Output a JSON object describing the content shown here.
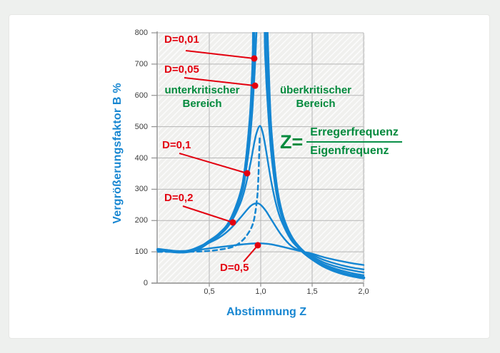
{
  "colors": {
    "blue_curve": "#1486d2",
    "red_annotation": "#e3000f",
    "green_text": "#028a3d",
    "grid": "#b5b5b5",
    "axis": "#8f8f8f",
    "tick_text": "#3c3c3c",
    "plot_background": "#f0f0ee",
    "card_background": "#ffffff",
    "page_background": "#eef0ee"
  },
  "chart_data": {
    "type": "line",
    "title": "",
    "xlabel": "Abstimmung Z",
    "ylabel": "Vergrößerungsfaktor B %",
    "xlim": [
      0,
      2
    ],
    "ylim": [
      0,
      800
    ],
    "grid": true,
    "x_ticks": [
      {
        "value": 0.5,
        "label": "0,5"
      },
      {
        "value": 1.0,
        "label": "1,0"
      },
      {
        "value": 1.5,
        "label": "1,5"
      },
      {
        "value": 2.0,
        "label": "2,0"
      }
    ],
    "y_ticks": [
      {
        "value": 0,
        "label": "0"
      },
      {
        "value": 100,
        "label": "100"
      },
      {
        "value": 200,
        "label": "200"
      },
      {
        "value": 300,
        "label": "300"
      },
      {
        "value": 400,
        "label": "400"
      },
      {
        "value": 500,
        "label": "500"
      },
      {
        "value": 600,
        "label": "600"
      },
      {
        "value": 700,
        "label": "700"
      },
      {
        "value": 800,
        "label": "800"
      }
    ],
    "series": [
      {
        "id": "d001",
        "name": "D=0,01",
        "style": "thick",
        "points": [
          [
            0,
            107
          ],
          [
            0.1,
            103
          ],
          [
            0.2,
            100
          ],
          [
            0.3,
            102
          ],
          [
            0.4,
            112
          ],
          [
            0.5,
            133
          ],
          [
            0.6,
            157
          ],
          [
            0.7,
            196
          ],
          [
            0.8,
            278
          ],
          [
            0.85,
            360
          ],
          [
            0.9,
            524
          ],
          [
            0.92,
            646
          ],
          [
            0.93,
            733
          ],
          [
            0.95,
            1000
          ],
          [
            1.05,
            956
          ],
          [
            1.06,
            797
          ],
          [
            1.08,
            600
          ],
          [
            1.1,
            475
          ],
          [
            1.15,
            311
          ],
          [
            1.2,
            227
          ],
          [
            1.25,
            178
          ],
          [
            1.3,
            145
          ],
          [
            1.35,
            122
          ],
          [
            1.414,
            100
          ],
          [
            1.5,
            78
          ],
          [
            1.6,
            57
          ],
          [
            1.7,
            42
          ],
          [
            1.8,
            31
          ],
          [
            1.9,
            23
          ],
          [
            2,
            17
          ]
        ]
      },
      {
        "id": "d005",
        "name": "D=0,05",
        "style": "thin",
        "points": [
          [
            0,
            106
          ],
          [
            0.15,
            100
          ],
          [
            0.3,
            103
          ],
          [
            0.4,
            113
          ],
          [
            0.5,
            133
          ],
          [
            0.6,
            156
          ],
          [
            0.7,
            195
          ],
          [
            0.8,
            273
          ],
          [
            0.85,
            350
          ],
          [
            0.88,
            413
          ],
          [
            0.9,
            476
          ],
          [
            0.92,
            558
          ],
          [
            0.94,
            668
          ],
          [
            0.96,
            807
          ],
          [
            0.97,
            900
          ],
          [
            1.03,
            900
          ],
          [
            1.04,
            756
          ],
          [
            1.05,
            681
          ],
          [
            1.06,
            614
          ],
          [
            1.1,
            422
          ],
          [
            1.15,
            292
          ],
          [
            1.2,
            219
          ],
          [
            1.3,
            142
          ],
          [
            1.414,
            100
          ],
          [
            1.5,
            81
          ],
          [
            1.6,
            62
          ],
          [
            1.7,
            49
          ],
          [
            1.8,
            39
          ],
          [
            1.9,
            31
          ],
          [
            2,
            25
          ]
        ]
      },
      {
        "id": "d01",
        "name": "D=0,1",
        "style": "thin",
        "points": [
          [
            0,
            105
          ],
          [
            0.15,
            100
          ],
          [
            0.3,
            104
          ],
          [
            0.5,
            132
          ],
          [
            0.6,
            154
          ],
          [
            0.7,
            189
          ],
          [
            0.8,
            254
          ],
          [
            0.85,
            307
          ],
          [
            0.9,
            382
          ],
          [
            0.95,
            468
          ],
          [
            0.99,
            502
          ],
          [
            1.02,
            480
          ],
          [
            1.05,
            428
          ],
          [
            1.1,
            329
          ],
          [
            1.15,
            252
          ],
          [
            1.2,
            200
          ],
          [
            1.3,
            136
          ],
          [
            1.414,
            100
          ],
          [
            1.5,
            85
          ],
          [
            1.6,
            68
          ],
          [
            1.7,
            56
          ],
          [
            1.8,
            47
          ],
          [
            1.9,
            40
          ],
          [
            2,
            34
          ]
        ]
      },
      {
        "id": "d02",
        "name": "D=0,2",
        "style": "thin",
        "points": [
          [
            0,
            105
          ],
          [
            0.2,
            100
          ],
          [
            0.35,
            104
          ],
          [
            0.5,
            129
          ],
          [
            0.6,
            146
          ],
          [
            0.7,
            172
          ],
          [
            0.8,
            208
          ],
          [
            0.9,
            246
          ],
          [
            0.96,
            255
          ],
          [
            1,
            250
          ],
          [
            1.05,
            231
          ],
          [
            1.1,
            205
          ],
          [
            1.2,
            154
          ],
          [
            1.3,
            118
          ],
          [
            1.414,
            100
          ],
          [
            1.5,
            90
          ],
          [
            1.6,
            76
          ],
          [
            1.7,
            65
          ],
          [
            1.8,
            56
          ],
          [
            1.9,
            49
          ],
          [
            2,
            44
          ]
        ]
      },
      {
        "id": "d05",
        "name": "D=0,5",
        "style": "thin",
        "points": [
          [
            0,
            104
          ],
          [
            0.2,
            100
          ],
          [
            0.35,
            104
          ],
          [
            0.5,
            111
          ],
          [
            0.6,
            115
          ],
          [
            0.7,
            119
          ],
          [
            0.8,
            123
          ],
          [
            0.9,
            126
          ],
          [
            1,
            127
          ],
          [
            1.1,
            124
          ],
          [
            1.2,
            117
          ],
          [
            1.3,
            109
          ],
          [
            1.414,
            100
          ],
          [
            1.5,
            94
          ],
          [
            1.6,
            84
          ],
          [
            1.7,
            76
          ],
          [
            1.8,
            69
          ],
          [
            1.9,
            63
          ],
          [
            2,
            58
          ]
        ]
      },
      {
        "id": "locus",
        "name": "",
        "style": "dashed",
        "points": [
          [
            0,
            100
          ],
          [
            0.25,
            100
          ],
          [
            0.4,
            101
          ],
          [
            0.5,
            103
          ],
          [
            0.6,
            107
          ],
          [
            0.7,
            113
          ],
          [
            0.75,
            119
          ],
          [
            0.8,
            130
          ],
          [
            0.85,
            146
          ],
          [
            0.9,
            171
          ],
          [
            0.93,
            196
          ],
          [
            0.95,
            231
          ],
          [
            0.96,
            257
          ],
          [
            0.97,
            290
          ],
          [
            0.98,
            359
          ],
          [
            0.99,
            470
          ]
        ]
      }
    ],
    "annotations": [
      {
        "id": "d001",
        "label": "D=0,01",
        "point": {
          "z": 0.937,
          "b": 718
        }
      },
      {
        "id": "d005",
        "label": "D=0,05",
        "point": {
          "z": 0.945,
          "b": 631
        }
      },
      {
        "id": "d01",
        "label": "D=0,1",
        "point": {
          "z": 0.868,
          "b": 351
        }
      },
      {
        "id": "d02",
        "label": "D=0,2",
        "point": {
          "z": 0.729,
          "b": 194
        }
      },
      {
        "id": "d05",
        "label": "D=0,5",
        "point": {
          "z": 0.972,
          "b": 121
        }
      }
    ],
    "regions": {
      "subcritical": [
        "unterkritischer",
        "Bereich"
      ],
      "supercritical": [
        "überkritischer",
        "Bereich"
      ]
    },
    "formula": {
      "lhs": "Z=",
      "numerator": "Erregerfrequenz",
      "denominator": "Eigenfrequenz"
    }
  }
}
